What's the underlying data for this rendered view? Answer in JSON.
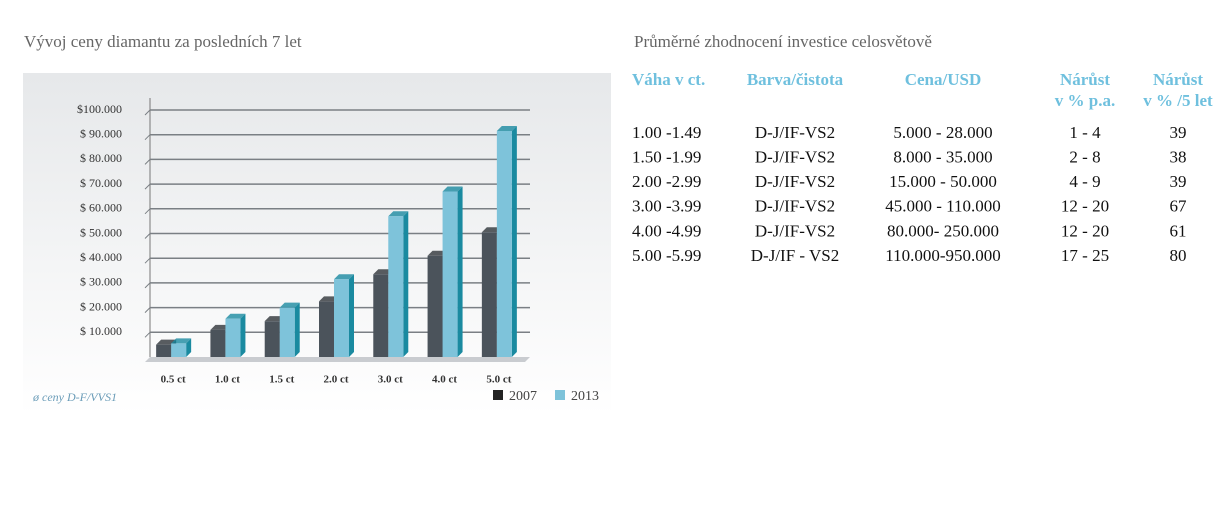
{
  "chart_data": {
    "type": "bar",
    "title": "Vývoj ceny diamantu za posledních 7 let",
    "note": "ø ceny D-F/VVS1",
    "categories": [
      "0.5 ct",
      "1.0 ct",
      "1.5 ct",
      "2.0 ct",
      "3.0 ct",
      "4.0 ct",
      "5.0 ct"
    ],
    "series": [
      {
        "name": "2007",
        "color": "#4b535b",
        "values": [
          5000,
          11000,
          14500,
          22500,
          33500,
          41000,
          50500
        ]
      },
      {
        "name": "2013",
        "color": "#7ec3da",
        "values": [
          5500,
          15500,
          20000,
          31500,
          57000,
          67000,
          91500
        ]
      }
    ],
    "ylim": [
      0,
      100000
    ],
    "yticks": [
      {
        "value": 10000,
        "label": "$ 10.000"
      },
      {
        "value": 20000,
        "label": "$ 20.000"
      },
      {
        "value": 30000,
        "label": "$ 30.000"
      },
      {
        "value": 40000,
        "label": "$ 40.000"
      },
      {
        "value": 50000,
        "label": "$ 50.000"
      },
      {
        "value": 60000,
        "label": "$ 60.000"
      },
      {
        "value": 70000,
        "label": "$ 70.000"
      },
      {
        "value": 80000,
        "label": "$ 80.000"
      },
      {
        "value": 90000,
        "label": "$ 90.000"
      },
      {
        "value": 100000,
        "label": "$100.000"
      }
    ],
    "grid": true
  },
  "table": {
    "title": "Průměrné zhodnocení investice celosvětově",
    "headers": [
      [
        "Váha v ct."
      ],
      [
        "Barva/čistota"
      ],
      [
        "Cena/USD"
      ],
      [
        "Nárůst",
        "v % p.a."
      ],
      [
        "Nárůst",
        "v % /5 let"
      ]
    ],
    "rows": [
      [
        "1.00 -1.49",
        "D-J/IF-VS2",
        "5.000 - 28.000",
        "1 - 4",
        "39"
      ],
      [
        "1.50 -1.99",
        "D-J/IF-VS2",
        "8.000 - 35.000",
        "2 - 8",
        "38"
      ],
      [
        "2.00 -2.99",
        "D-J/IF-VS2",
        "15.000 - 50.000",
        "4 - 9",
        "39"
      ],
      [
        "3.00 -3.99",
        "D-J/IF-VS2",
        "45.000 - 110.000",
        "12 - 20",
        "67"
      ],
      [
        "4.00 -4.99",
        "D-J/IF-VS2",
        "80.000- 250.000",
        "12 - 20",
        "61"
      ],
      [
        "5.00 -5.99",
        "D-J/IF - VS2",
        "110.000-950.000",
        "17 - 25",
        "80"
      ]
    ]
  }
}
